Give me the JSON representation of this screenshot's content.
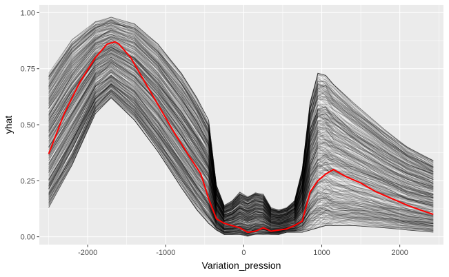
{
  "chart_data": {
    "type": "line",
    "title": "",
    "xlabel": "Variation_pression",
    "ylabel": "yhat",
    "xlim": [
      -2620,
      2560
    ],
    "ylim": [
      -0.035,
      1.035
    ],
    "x_ticks": [
      -2000,
      -1000,
      0,
      1000,
      2000
    ],
    "x_tick_labels": [
      "-2000",
      "-1000",
      "0",
      "1000",
      "2000"
    ],
    "y_ticks": [
      0,
      0.25,
      0.5,
      0.75,
      1.0
    ],
    "y_tick_labels": [
      "0.00",
      "0.25",
      "0.50",
      "0.75",
      "1.00"
    ],
    "grid": true,
    "background": "#EBEBEB",
    "ice_line_color": "#000000",
    "ice_envelope": {
      "x": [
        -2500,
        -2200,
        -1900,
        -1700,
        -1400,
        -1100,
        -800,
        -600,
        -450,
        -350,
        -250,
        -150,
        -50,
        50,
        150,
        250,
        350,
        450,
        550,
        650,
        750,
        850,
        950,
        1050,
        1150,
        1400,
        1800,
        2100,
        2430
      ],
      "upper": [
        0.73,
        0.88,
        0.96,
        0.98,
        0.95,
        0.86,
        0.73,
        0.62,
        0.52,
        0.23,
        0.14,
        0.16,
        0.2,
        0.18,
        0.2,
        0.19,
        0.13,
        0.12,
        0.13,
        0.16,
        0.3,
        0.6,
        0.73,
        0.72,
        0.68,
        0.6,
        0.48,
        0.4,
        0.34
      ],
      "lower": [
        0.13,
        0.32,
        0.55,
        0.62,
        0.52,
        0.38,
        0.22,
        0.12,
        0.06,
        0.03,
        0.01,
        0.01,
        0.01,
        0.0,
        0.01,
        0.01,
        0.01,
        0.01,
        0.02,
        0.02,
        0.02,
        0.03,
        0.04,
        0.05,
        0.05,
        0.05,
        0.04,
        0.03,
        0.02
      ]
    },
    "series": [
      {
        "color": "#FF0000",
        "x": [
          -2500,
          -2300,
          -2100,
          -1900,
          -1750,
          -1650,
          -1600,
          -1450,
          -1300,
          -1100,
          -900,
          -700,
          -550,
          -450,
          -350,
          -250,
          -150,
          -50,
          50,
          150,
          250,
          350,
          450,
          550,
          650,
          750,
          850,
          950,
          1050,
          1150,
          1300,
          1500,
          1700,
          1900,
          2100,
          2300,
          2430
        ],
        "values": [
          0.37,
          0.55,
          0.69,
          0.8,
          0.86,
          0.87,
          0.86,
          0.8,
          0.71,
          0.59,
          0.47,
          0.36,
          0.28,
          0.17,
          0.08,
          0.06,
          0.05,
          0.04,
          0.02,
          0.025,
          0.04,
          0.025,
          0.03,
          0.035,
          0.05,
          0.07,
          0.2,
          0.25,
          0.28,
          0.3,
          0.27,
          0.24,
          0.2,
          0.17,
          0.14,
          0.115,
          0.1
        ]
      }
    ]
  }
}
